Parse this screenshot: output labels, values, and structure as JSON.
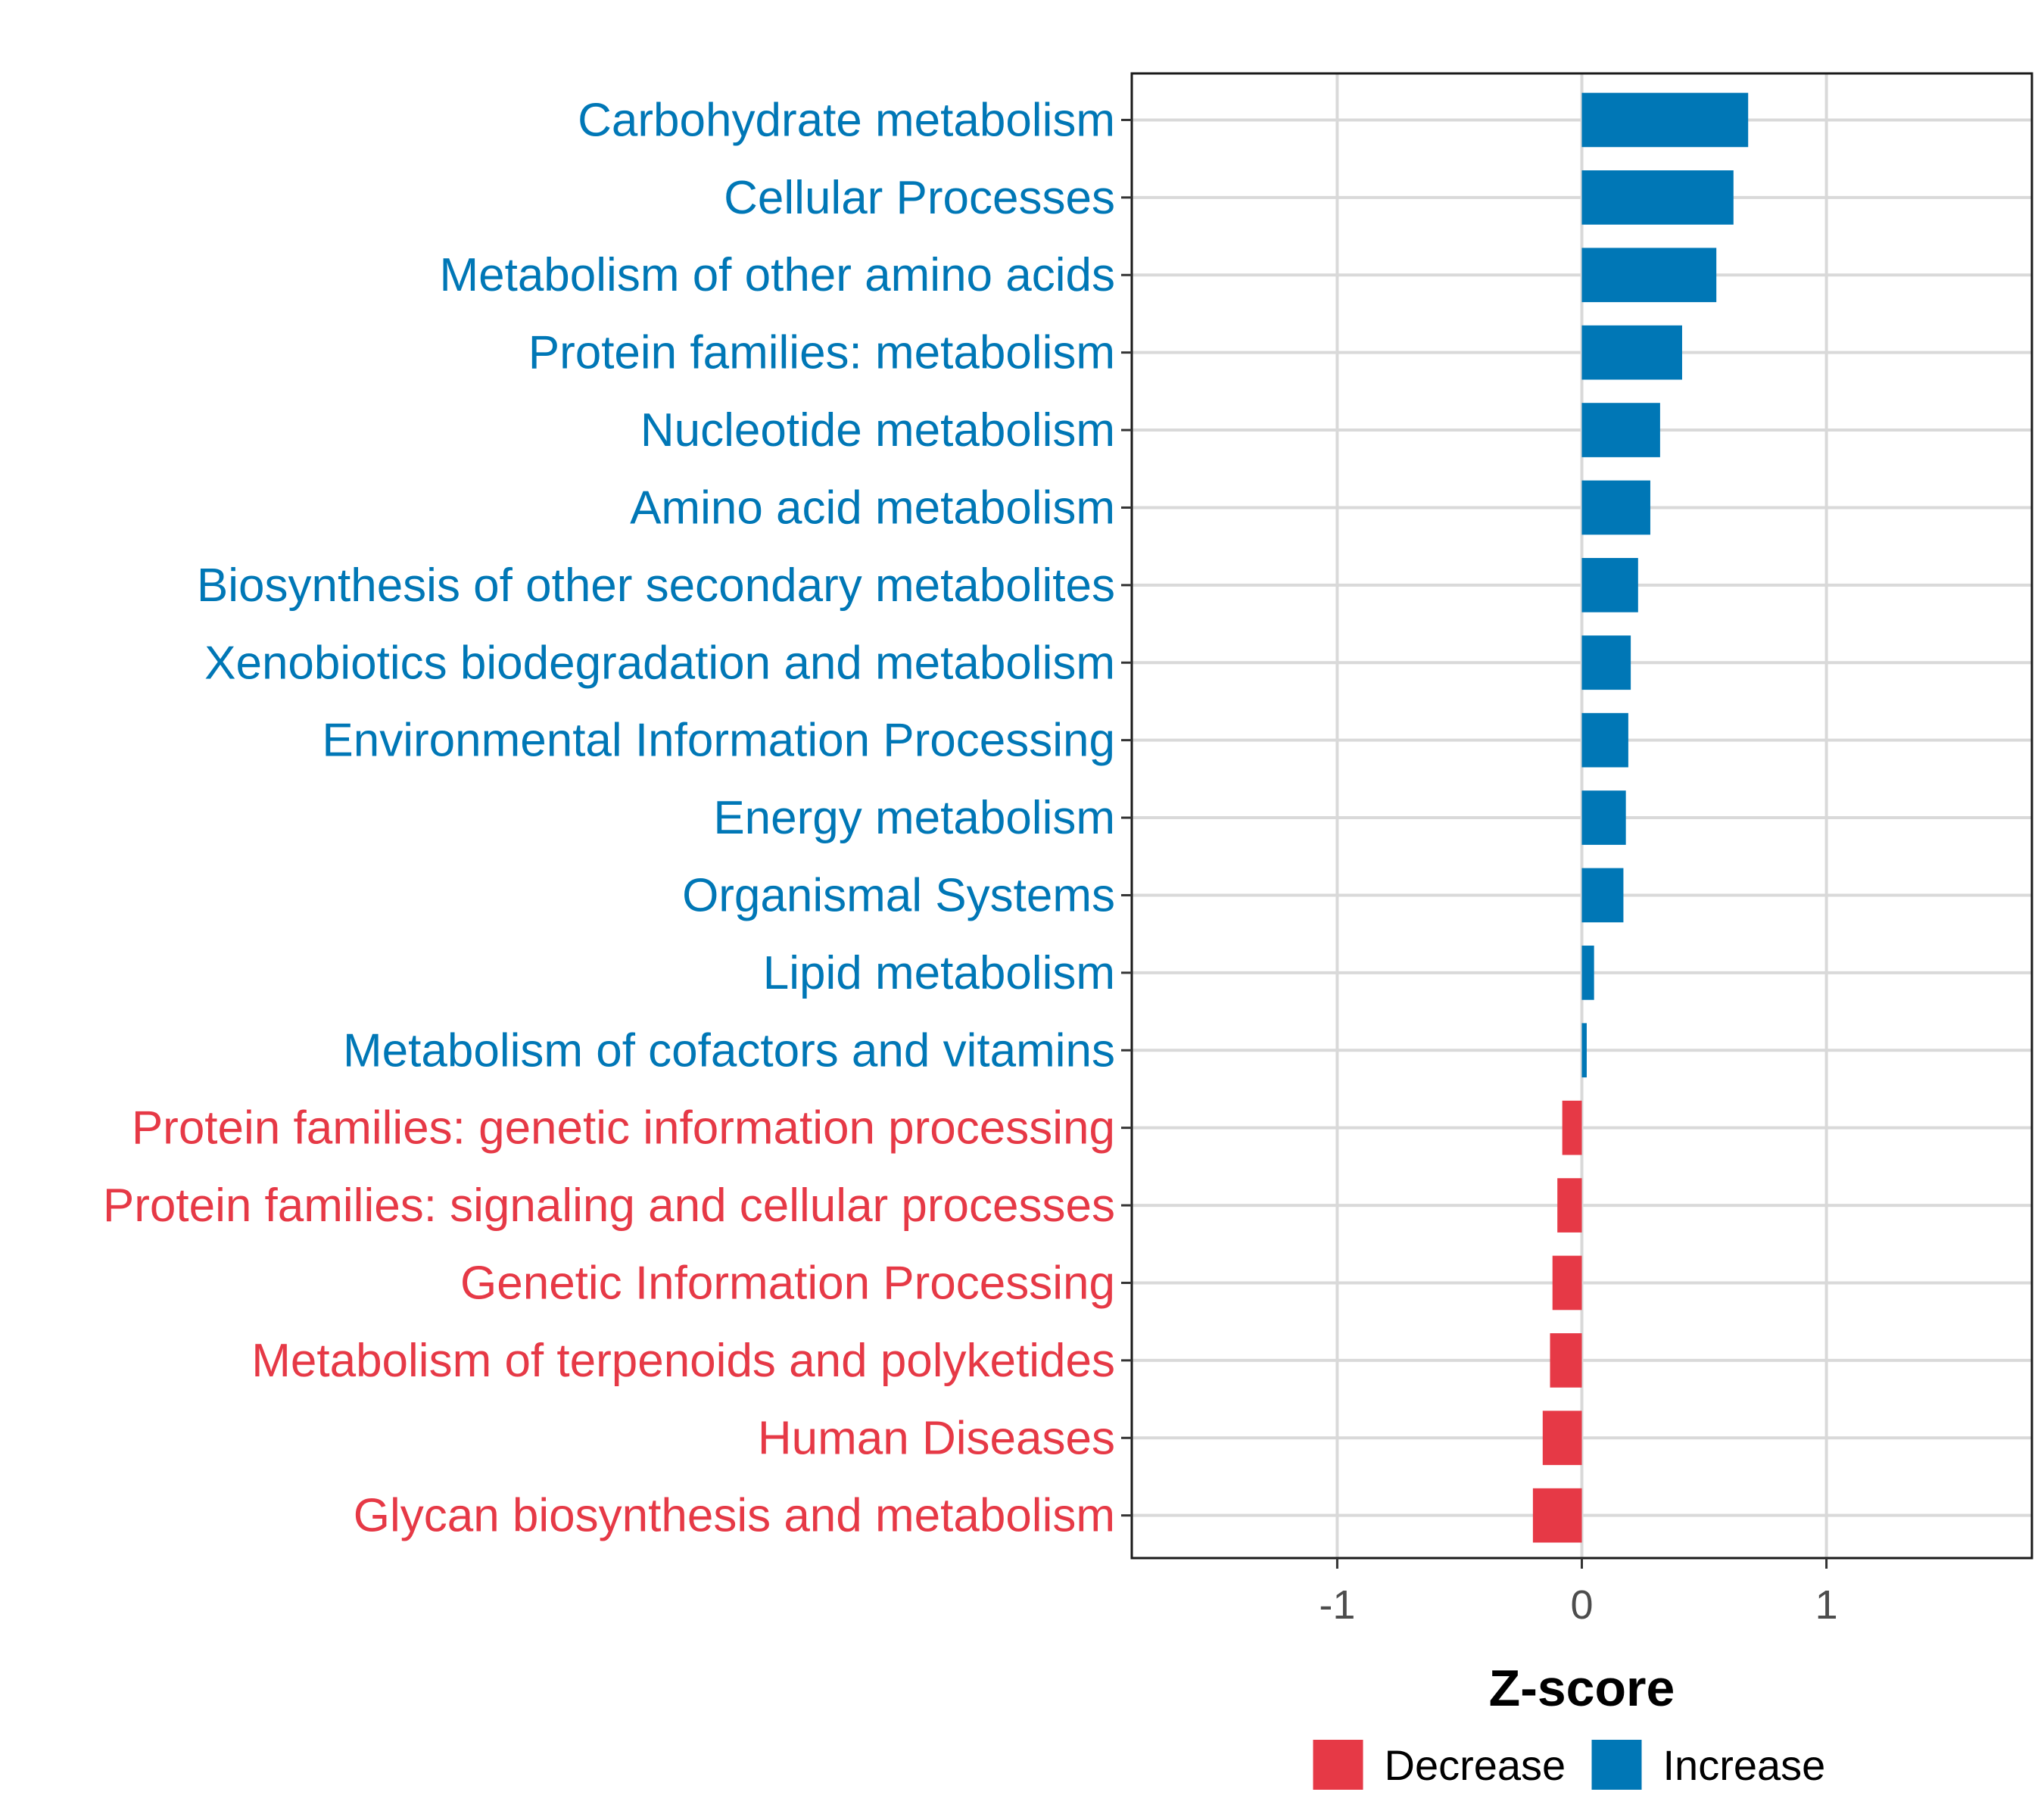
{
  "chart_data": {
    "type": "bar",
    "orientation": "horizontal",
    "xlabel": "Z-score",
    "ylabel": "",
    "xlim": [
      -1.84,
      1.84
    ],
    "xticks": [
      -1,
      0,
      1
    ],
    "xtick_labels": [
      "-1",
      "0",
      "1"
    ],
    "grid": true,
    "categories": [
      "Carbohydrate metabolism",
      "Cellular Processes",
      "Metabolism of other amino acids",
      "Protein families: metabolism",
      "Nucleotide metabolism",
      "Amino acid metabolism",
      "Biosynthesis of other secondary metabolites",
      "Xenobiotics biodegradation and metabolism",
      "Environmental Information Processing",
      "Energy metabolism",
      "Organismal Systems",
      "Lipid metabolism",
      "Metabolism of cofactors and vitamins",
      "Protein families: genetic information processing",
      "Protein families: signaling and cellular processes",
      "Genetic Information Processing",
      "Metabolism of terpenoids and polyketides",
      "Human Diseases",
      "Glycan biosynthesis and metabolism"
    ],
    "values": [
      0.68,
      0.62,
      0.55,
      0.41,
      0.32,
      0.28,
      0.23,
      0.2,
      0.19,
      0.18,
      0.17,
      0.05,
      0.02,
      -0.08,
      -0.1,
      -0.12,
      -0.13,
      -0.16,
      -0.2
    ],
    "groups": [
      "Increase",
      "Increase",
      "Increase",
      "Increase",
      "Increase",
      "Increase",
      "Increase",
      "Increase",
      "Increase",
      "Increase",
      "Increase",
      "Increase",
      "Increase",
      "Decrease",
      "Decrease",
      "Decrease",
      "Decrease",
      "Decrease",
      "Decrease"
    ],
    "legend": {
      "position": "bottom",
      "entries": [
        {
          "label": "Decrease",
          "color": "#e63946"
        },
        {
          "label": "Increase",
          "color": "#0077b6"
        }
      ]
    },
    "colors": {
      "Increase": "#0077b6",
      "Decrease": "#e63946"
    }
  }
}
